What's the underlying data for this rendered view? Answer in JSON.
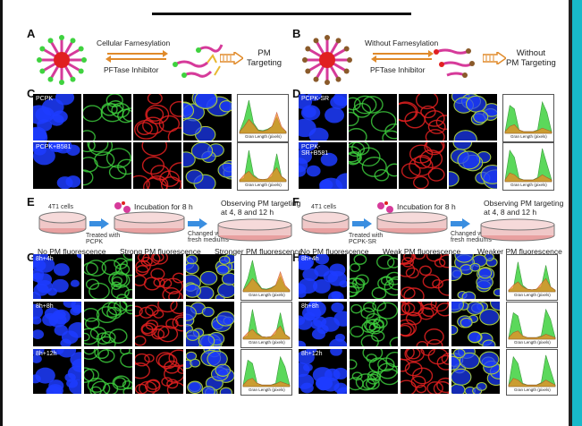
{
  "panel_letters": [
    "A",
    "B",
    "C",
    "D",
    "E",
    "F",
    "G",
    "H"
  ],
  "panel_A": {
    "arrow_top": "Cellular Farnesylation",
    "arrow_bottom": "PFTase Inhibitor",
    "result": "PM\nTargeting"
  },
  "panel_B": {
    "arrow_top": "Without Farnesylation",
    "arrow_bottom": "PFTase Inhibitor",
    "result": "Without\nPM Targeting"
  },
  "panel_C": {
    "row_labels": [
      "PCPK",
      "PCPK+B581"
    ]
  },
  "panel_D": {
    "row_labels": [
      "PCPK-SR",
      "PCPK-SR+B581"
    ]
  },
  "panel_E": {
    "cells": "4T1 cells",
    "incubation": "Incubation for 8 h",
    "treated": "Treated with\nPCPK",
    "changed": "Changed with\nfresh mediums",
    "observing": "Observing PM targeting\nat 4, 8 and 12 h",
    "status": [
      "No PM fluorescence",
      "Strong PM fluorescence",
      "Stronger PM fluorescence"
    ]
  },
  "panel_F": {
    "cells": "4T1 cells",
    "incubation": "Incubation for 8 h",
    "treated": "Treated with\nPCPK-SR",
    "changed": "Changed with\nfresh mediums",
    "observing": "Observing PM targeting\nat 4, 8 and 12 h",
    "status": [
      "No PM fluorescence",
      "Weak PM fluorescence",
      "Weaker PM fluorescence"
    ]
  },
  "panel_G": {
    "row_labels": [
      "8h+4h",
      "8h+8h",
      "8h+12h"
    ]
  },
  "panel_H": {
    "row_labels": [
      "8h+4h",
      "8h+8h",
      "8h+12h"
    ]
  },
  "chart_axis_label": "Gran Length (pixels)",
  "chart_ticks": [
    "0",
    "20",
    "40",
    "60",
    "80",
    "100",
    "120"
  ],
  "colors": {
    "blue": "#1d3cff",
    "green": "#3fd23f",
    "red": "#e02020",
    "orange": "#f08a24",
    "pink": "#d63a9a",
    "tan": "#d9a25a",
    "accent_cyan": "#18b9c9"
  },
  "chart_data": [
    {
      "type": "area",
      "panel": "C",
      "row": 1,
      "series": [
        {
          "name": "",
          "values": [
            5,
            40,
            95,
            30,
            10,
            8,
            12,
            20,
            45,
            15,
            5
          ]
        },
        {
          "name": "",
          "values": [
            5,
            20,
            40,
            25,
            8,
            6,
            10,
            20,
            60,
            20,
            5
          ]
        }
      ]
    },
    {
      "type": "area",
      "panel": "C",
      "row": 2,
      "series": [
        {
          "name": "",
          "values": [
            5,
            10,
            90,
            20,
            8,
            6,
            8,
            15,
            80,
            15,
            5
          ]
        },
        {
          "name": "",
          "values": [
            5,
            20,
            30,
            15,
            8,
            6,
            8,
            25,
            40,
            15,
            5
          ]
        }
      ]
    },
    {
      "type": "area",
      "panel": "D",
      "row": 1,
      "series": [
        {
          "name": "",
          "values": [
            5,
            80,
            70,
            10,
            5,
            5,
            5,
            10,
            90,
            60,
            5
          ]
        },
        {
          "name": "",
          "values": [
            5,
            20,
            25,
            10,
            5,
            5,
            5,
            8,
            15,
            10,
            5
          ]
        }
      ]
    },
    {
      "type": "area",
      "panel": "D",
      "row": 2,
      "series": [
        {
          "name": "",
          "values": [
            5,
            90,
            70,
            10,
            5,
            5,
            5,
            12,
            95,
            50,
            5
          ]
        },
        {
          "name": "",
          "values": [
            5,
            25,
            20,
            8,
            5,
            5,
            5,
            10,
            20,
            12,
            5
          ]
        }
      ]
    }
  ]
}
